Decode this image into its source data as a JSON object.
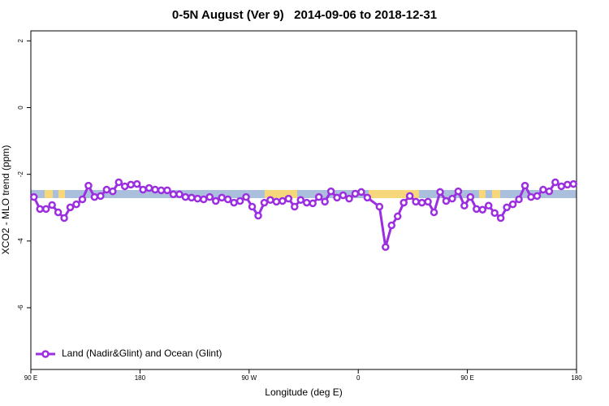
{
  "chart_data": {
    "type": "line",
    "title": "0-5N August (Ver 9)   2014-09-06 to 2018-12-31",
    "x_label": "Longitude (deg E)",
    "y_label": "XCO2 - MLO trend (ppm)",
    "xlim": [
      90,
      540
    ],
    "xticks": [
      {
        "value": 90,
        "label": "90 E"
      },
      180,
      {
        "value": 270,
        "label": "90 W"
      },
      {
        "value": 360,
        "label": "0"
      },
      {
        "value": 450,
        "label": "90 E"
      },
      {
        "value": 540,
        "label": "180"
      }
    ],
    "ylim": [
      -7.85,
      2.3
    ],
    "yticks": [
      2,
      0,
      -2,
      -4,
      -6
    ],
    "legend": "bottom-left",
    "series": [
      {
        "name": "Land (Nadir&Glint) and Ocean (Glint)",
        "color": "#9b2fe0",
        "x": [
          92.5,
          97.5,
          102.5,
          107.5,
          112.5,
          117.5,
          122.5,
          127.5,
          132.5,
          137.5,
          142.5,
          147.5,
          152.5,
          157.5,
          162.5,
          167.5,
          172.5,
          177.5,
          182.5,
          187.5,
          192.5,
          197.5,
          202.5,
          207.5,
          212.5,
          217.5,
          222.5,
          227.5,
          232.5,
          237.5,
          242.5,
          247.5,
          252.5,
          257.5,
          262.5,
          267.5,
          272.5,
          277.5,
          282.5,
          287.5,
          292.5,
          297.5,
          302.5,
          307.5,
          312.5,
          317.5,
          322.5,
          327.5,
          332.5,
          337.5,
          342.5,
          347.5,
          352.5,
          357.5,
          362.5,
          367.5,
          377.5,
          382.5,
          387.5,
          392.5,
          397.5,
          402.5,
          407.5,
          412.5,
          417.5,
          422.5,
          427.5,
          432.5,
          437.5,
          442.5,
          447.5,
          452.5,
          457.5,
          462.5,
          467.5,
          472.5,
          477.5,
          482.5,
          487.5,
          492.5,
          497.5,
          502.5,
          507.5,
          512.5,
          517.5,
          522.5,
          527.5,
          532.5,
          537.5
        ],
        "values": [
          -2.68,
          -3.04,
          -3.04,
          -2.92,
          -3.14,
          -3.31,
          -2.99,
          -2.9,
          -2.75,
          -2.34,
          -2.68,
          -2.65,
          -2.46,
          -2.51,
          -2.24,
          -2.36,
          -2.31,
          -2.29,
          -2.46,
          -2.41,
          -2.46,
          -2.48,
          -2.48,
          -2.6,
          -2.6,
          -2.68,
          -2.7,
          -2.73,
          -2.75,
          -2.68,
          -2.8,
          -2.7,
          -2.75,
          -2.85,
          -2.8,
          -2.68,
          -2.97,
          -3.24,
          -2.85,
          -2.77,
          -2.82,
          -2.8,
          -2.73,
          -2.97,
          -2.77,
          -2.85,
          -2.87,
          -2.68,
          -2.82,
          -2.51,
          -2.7,
          -2.63,
          -2.73,
          -2.58,
          -2.53,
          -2.7,
          -2.97,
          -4.18,
          -3.53,
          -3.26,
          -2.85,
          -2.65,
          -2.82,
          -2.85,
          -2.82,
          -3.14,
          -2.53,
          -2.8,
          -2.73,
          -2.51,
          -2.94,
          -2.68,
          -3.04,
          -3.06,
          -2.94,
          -3.16,
          -3.31,
          -2.99,
          -2.9,
          -2.75,
          -2.34,
          -2.68,
          -2.65,
          -2.46,
          -2.51,
          -2.24,
          -2.36,
          -2.31,
          -2.29
        ]
      }
    ]
  }
}
